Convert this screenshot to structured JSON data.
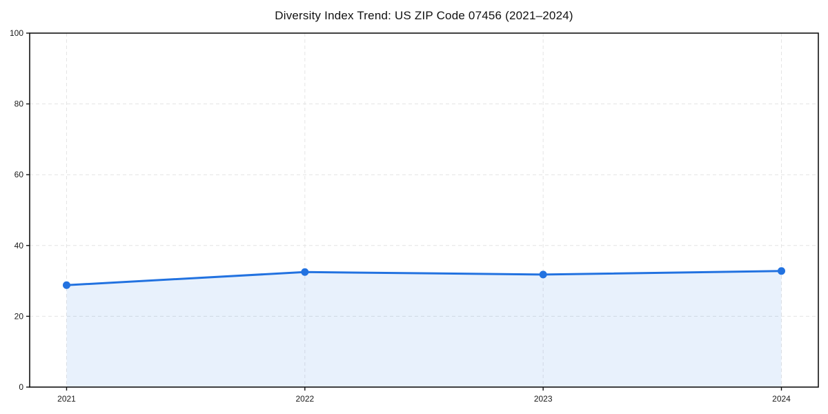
{
  "chart_data": {
    "type": "area",
    "title": "Diversity Index Trend: US ZIP Code 07456 (2021–2024)",
    "categories": [
      "2021",
      "2022",
      "2023",
      "2024"
    ],
    "values": [
      28.8,
      32.5,
      31.8,
      32.8
    ],
    "xlabel": "",
    "ylabel": "",
    "ylim": [
      0,
      100
    ],
    "yticks": [
      0,
      20,
      40,
      60,
      80,
      100
    ],
    "grid": "dashed",
    "legend": "none",
    "line_color": "#2272e0",
    "marker_color": "#2272e0",
    "fill_color": "#2272e0",
    "fill_opacity": 0.1,
    "grid_color": "#e4e4e4",
    "axis_color": "#111111",
    "text_color": "#1a1a1a",
    "background": "#ffffff"
  }
}
